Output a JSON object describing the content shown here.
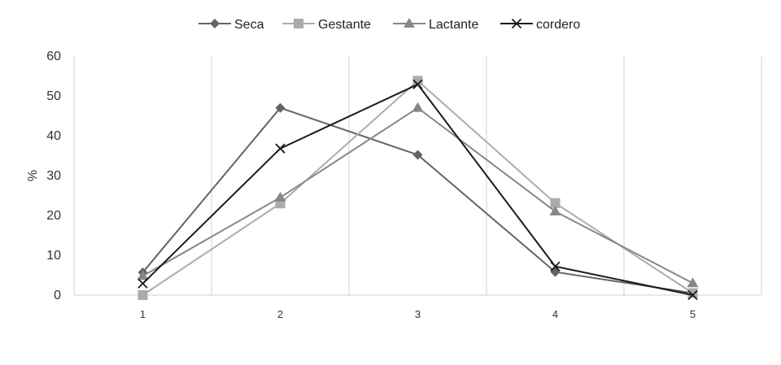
{
  "chart_data": {
    "type": "line",
    "title": "",
    "xlabel": "",
    "ylabel": "%",
    "categories": [
      "1",
      "2",
      "3",
      "4",
      "5"
    ],
    "ylim": [
      0,
      60
    ],
    "yticks": [
      "0",
      "10",
      "20",
      "30",
      "40",
      "50",
      "60"
    ],
    "grid": "vertical",
    "legend_position": "top",
    "series": [
      {
        "name": "Seca",
        "values": [
          5.7,
          47.0,
          35.2,
          5.8,
          0.5
        ],
        "color": "#646464",
        "marker": "diamond"
      },
      {
        "name": "Gestante",
        "values": [
          0.0,
          23.0,
          53.8,
          23.1,
          0.5
        ],
        "color": "#ababab",
        "marker": "square"
      },
      {
        "name": "Lactante",
        "values": [
          4.8,
          24.5,
          47.0,
          21.0,
          3.0
        ],
        "color": "#878787",
        "marker": "triangle"
      },
      {
        "name": "cordero",
        "values": [
          2.9,
          36.8,
          52.9,
          7.2,
          0.0
        ],
        "color": "#1a1a1a",
        "marker": "x"
      }
    ]
  }
}
